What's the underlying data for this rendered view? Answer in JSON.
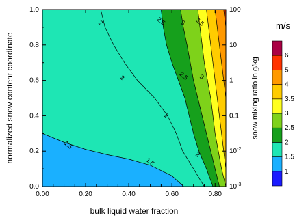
{
  "chart_data": {
    "type": "contour",
    "xlabel": "bulk liquid water fraction",
    "ylabel": "normalized snow content coordinate",
    "y2label": "snow mixing ratio in g/kg",
    "colorbar_title": "m/s",
    "xlim": [
      0.0,
      0.85
    ],
    "ylim": [
      0.0,
      1.0
    ],
    "x_ticks": [
      "0.00",
      "0.20",
      "0.40",
      "0.60",
      "0.80"
    ],
    "x_tick_values": [
      0.0,
      0.2,
      0.4,
      0.6,
      0.8
    ],
    "y_ticks": [
      "0.0",
      "0.2",
      "0.4",
      "0.6",
      "0.8",
      "1.0"
    ],
    "y_tick_values": [
      0.0,
      0.2,
      0.4,
      0.6,
      0.8,
      1.0
    ],
    "y2_ticks": [
      {
        "base": "10",
        "exp": "-3",
        "value": 0.0
      },
      {
        "base": "10",
        "exp": "-2",
        "value": 0.2
      },
      {
        "base": "0.1",
        "exp": "",
        "value": 0.4
      },
      {
        "base": "1",
        "exp": "",
        "value": 0.6
      },
      {
        "base": "10",
        "exp": "",
        "value": 0.8
      },
      {
        "base": "100",
        "exp": "",
        "value": 1.0
      }
    ],
    "colorbar": [
      {
        "label": "",
        "color": "#1b1bff"
      },
      {
        "label": "1",
        "color": "#1ab0ff"
      },
      {
        "label": "1.5",
        "color": "#1ee6b4"
      },
      {
        "label": "2",
        "color": "#16a01c"
      },
      {
        "label": "2.5",
        "color": "#7ed21a"
      },
      {
        "label": "3",
        "color": "#ffff1e"
      },
      {
        "label": "3.5",
        "color": "#ffcc00"
      },
      {
        "label": "4",
        "color": "#ff9900"
      },
      {
        "label": "5",
        "color": "#ff3300"
      },
      {
        "label": "6",
        "color": "#aa0044"
      }
    ],
    "fill_levels": [
      {
        "level": "1-1.5",
        "color": "#1ab0ff",
        "boundary": [
          [
            0.0,
            0.3
          ],
          [
            0.1,
            0.25
          ],
          [
            0.2,
            0.21
          ],
          [
            0.3,
            0.18
          ],
          [
            0.4,
            0.155
          ],
          [
            0.5,
            0.12
          ],
          [
            0.6,
            0.06
          ],
          [
            0.655,
            0.0
          ]
        ]
      },
      {
        "level": "1.5-2",
        "color": "#1ee6b4",
        "boundary": [
          [
            0.27,
            1.0
          ],
          [
            0.29,
            0.9
          ],
          [
            0.33,
            0.8
          ],
          [
            0.38,
            0.7
          ],
          [
            0.44,
            0.6
          ],
          [
            0.52,
            0.5
          ],
          [
            0.58,
            0.4
          ],
          [
            0.62,
            0.3
          ],
          [
            0.65,
            0.2
          ],
          [
            0.7,
            0.1
          ],
          [
            0.75,
            0.0
          ]
        ]
      },
      {
        "level": "2-2.5",
        "color": "#16a01c",
        "boundary": [
          [
            0.55,
            1.0
          ],
          [
            0.56,
            0.9
          ],
          [
            0.575,
            0.8
          ],
          [
            0.6,
            0.7
          ],
          [
            0.63,
            0.6
          ],
          [
            0.66,
            0.5
          ],
          [
            0.68,
            0.4
          ],
          [
            0.7,
            0.3
          ],
          [
            0.725,
            0.2
          ],
          [
            0.76,
            0.1
          ],
          [
            0.79,
            0.0
          ]
        ]
      },
      {
        "level": "2.5-3",
        "color": "#7ed21a",
        "boundary": [
          [
            0.64,
            1.0
          ],
          [
            0.653,
            0.9
          ],
          [
            0.67,
            0.8
          ],
          [
            0.685,
            0.7
          ],
          [
            0.7,
            0.6
          ],
          [
            0.72,
            0.5
          ],
          [
            0.74,
            0.4
          ],
          [
            0.76,
            0.3
          ],
          [
            0.78,
            0.2
          ],
          [
            0.8,
            0.1
          ],
          [
            0.82,
            0.0
          ]
        ]
      },
      {
        "level": "3-3.5",
        "color": "#ffff1e",
        "boundary": [
          [
            0.72,
            1.0
          ],
          [
            0.73,
            0.9
          ],
          [
            0.74,
            0.8
          ],
          [
            0.75,
            0.7
          ],
          [
            0.765,
            0.6
          ],
          [
            0.78,
            0.5
          ],
          [
            0.79,
            0.4
          ],
          [
            0.8,
            0.3
          ],
          [
            0.815,
            0.2
          ],
          [
            0.83,
            0.1
          ],
          [
            0.85,
            0.0
          ]
        ]
      },
      {
        "level": "3.5-4",
        "color": "#ffcc00",
        "boundary": [
          [
            0.76,
            1.0
          ],
          [
            0.77,
            0.9
          ],
          [
            0.78,
            0.8
          ],
          [
            0.79,
            0.7
          ],
          [
            0.8,
            0.6
          ],
          [
            0.81,
            0.5
          ],
          [
            0.82,
            0.4
          ],
          [
            0.83,
            0.3
          ],
          [
            0.84,
            0.2
          ],
          [
            0.85,
            0.1
          ],
          [
            0.85,
            0.0
          ]
        ]
      },
      {
        "level": "4-5",
        "color": "#ff9900",
        "boundary": [
          [
            0.8,
            1.0
          ],
          [
            0.81,
            0.9
          ],
          [
            0.82,
            0.8
          ],
          [
            0.83,
            0.7
          ],
          [
            0.84,
            0.6
          ],
          [
            0.85,
            0.5
          ],
          [
            0.85,
            0.0
          ]
        ]
      },
      {
        "level": "5-6",
        "color": "#ff3300",
        "boundary": [
          [
            0.84,
            1.0
          ],
          [
            0.85,
            0.9
          ],
          [
            0.85,
            0.0
          ]
        ]
      }
    ],
    "contour_labels": [
      {
        "text": "2",
        "x": 0.27,
        "y": 0.925
      },
      {
        "text": "2.5",
        "x": 0.55,
        "y": 0.935
      },
      {
        "text": "3",
        "x": 0.652,
        "y": 0.925
      },
      {
        "text": "3.5",
        "x": 0.73,
        "y": 0.93
      },
      {
        "text": "2",
        "x": 0.37,
        "y": 0.615
      },
      {
        "text": "2.5",
        "x": 0.655,
        "y": 0.625
      },
      {
        "text": "3",
        "x": 0.738,
        "y": 0.62
      },
      {
        "text": "2",
        "x": 0.575,
        "y": 0.4
      },
      {
        "text": "2",
        "x": 0.72,
        "y": 0.18
      },
      {
        "text": "1.5",
        "x": 0.12,
        "y": 0.235
      },
      {
        "text": "1.5",
        "x": 0.5,
        "y": 0.14
      }
    ]
  }
}
